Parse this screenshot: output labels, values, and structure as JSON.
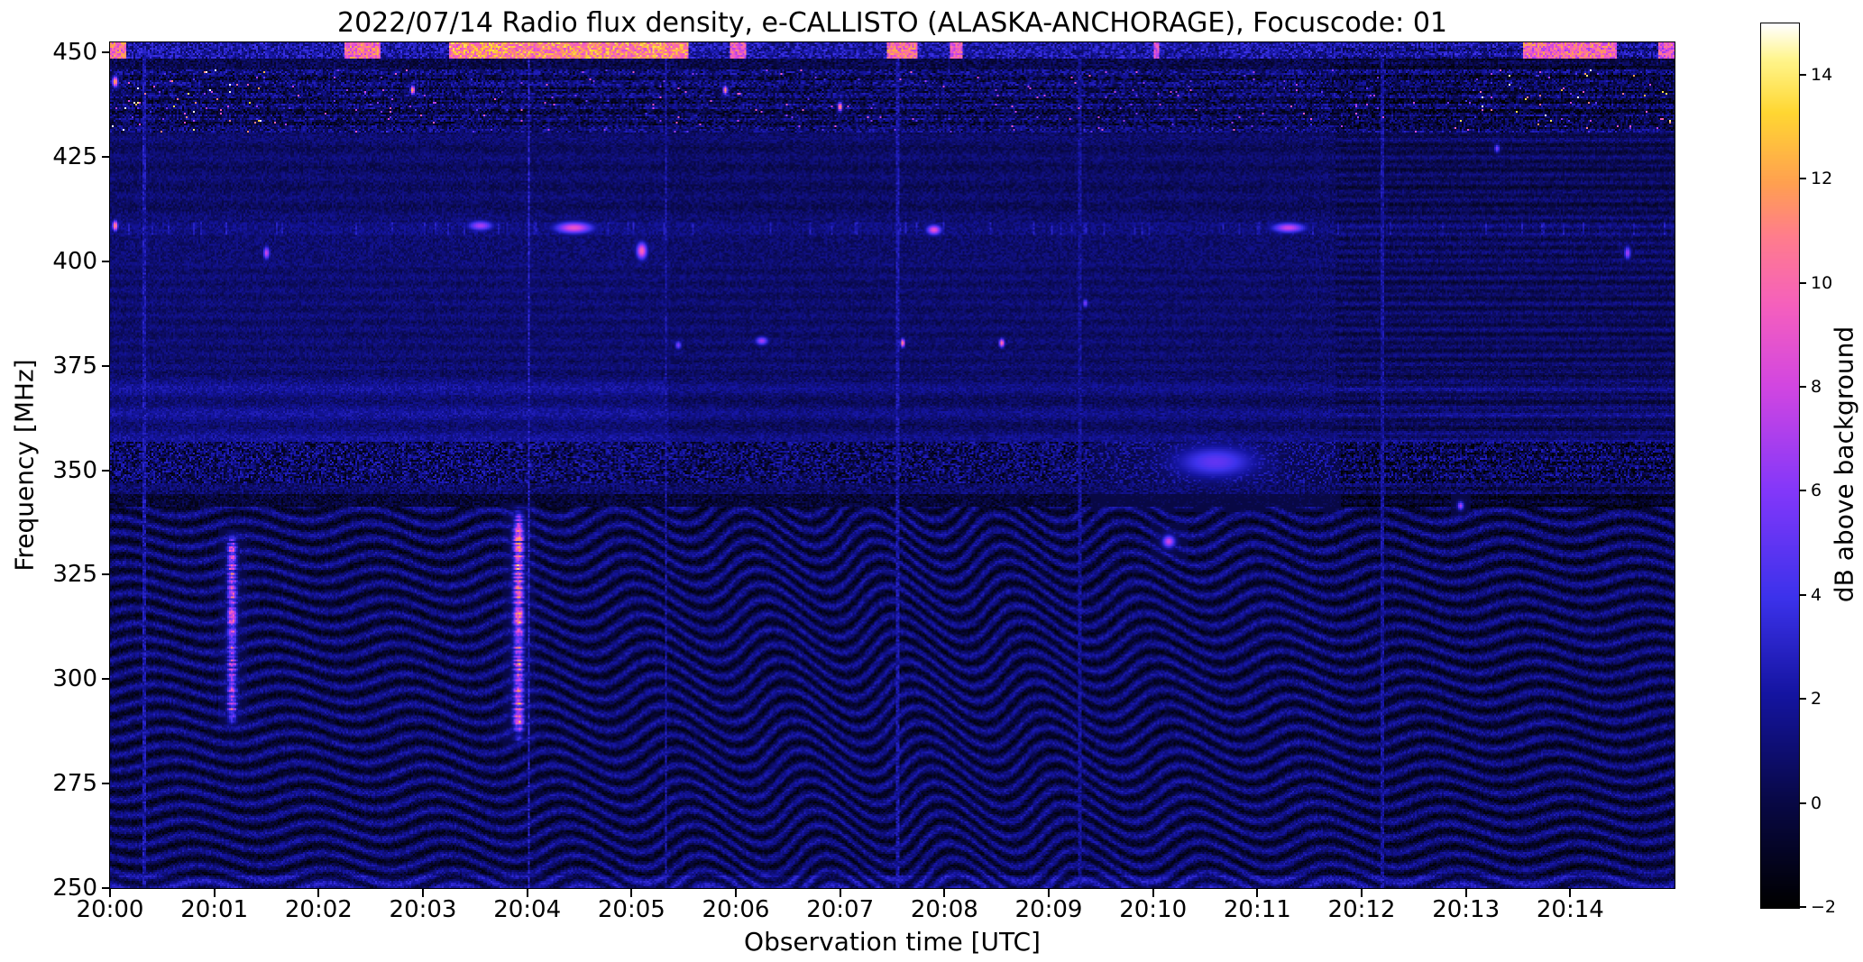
{
  "page": {
    "background": "#ffffff"
  },
  "chart_data": {
    "type": "heatmap",
    "title": "2022/07/14  Radio flux density, e-CALLISTO (ALASKA-ANCHORAGE), Focuscode: 01",
    "xlabel": "Observation time [UTC]",
    "ylabel": "Frequency [MHz]",
    "colorbar_label": "dB above background",
    "start_time_utc": "20:00",
    "x_tick_labels": [
      "20:00",
      "20:01",
      "20:02",
      "20:03",
      "20:04",
      "20:05",
      "20:06",
      "20:07",
      "20:08",
      "20:09",
      "20:10",
      "20:11",
      "20:12",
      "20:13",
      "20:14"
    ],
    "x_tick_minutes": [
      0,
      1,
      2,
      3,
      4,
      5,
      6,
      7,
      8,
      9,
      10,
      11,
      12,
      13,
      14
    ],
    "x_range_minutes": [
      0,
      15
    ],
    "y_tick_labels": [
      "250",
      "275",
      "300",
      "325",
      "350",
      "375",
      "400",
      "425",
      "450"
    ],
    "y_ticks_mhz": [
      250,
      275,
      300,
      325,
      350,
      375,
      400,
      425,
      450
    ],
    "y_range_mhz": [
      250,
      452.4
    ],
    "colorbar_tick_labels": [
      "−2",
      "0",
      "2",
      "4",
      "6",
      "8",
      "10",
      "12",
      "14"
    ],
    "colorbar_ticks": [
      -2,
      0,
      2,
      4,
      6,
      8,
      10,
      12,
      14
    ],
    "color_range_db": [
      -2,
      15
    ],
    "grid": false,
    "legend": false,
    "colormap_stops": [
      [
        0.0,
        0,
        0,
        0
      ],
      [
        0.12,
        8,
        8,
        70
      ],
      [
        0.24,
        20,
        20,
        160
      ],
      [
        0.35,
        60,
        50,
        235
      ],
      [
        0.47,
        130,
        55,
        250
      ],
      [
        0.59,
        210,
        70,
        225
      ],
      [
        0.68,
        245,
        95,
        190
      ],
      [
        0.76,
        255,
        125,
        140
      ],
      [
        0.82,
        255,
        160,
        80
      ],
      [
        0.9,
        255,
        215,
        50
      ],
      [
        0.96,
        255,
        245,
        140
      ],
      [
        1.0,
        255,
        255,
        255
      ]
    ],
    "features": {
      "background_db": 0.6,
      "wavy_band": {
        "f_max": 347,
        "stripe_period_mhz": 3.6,
        "description": "wavy blue interference stripes below 347 MHz, strongest waviness 20:05-20:10"
      },
      "granular_band": {
        "f_lo": 347,
        "f_hi": 357
      },
      "bright_blue_band": {
        "f_lo": 357,
        "f_hi": 372
      },
      "speckle_band": {
        "f_lo": 431,
        "f_hi": 446
      },
      "top_rfi_row": {
        "f_lo": 448.5,
        "f_hi": 452.4,
        "segments": [
          [
            0.0,
            0.15,
            10
          ],
          [
            2.25,
            2.6,
            10
          ],
          [
            3.25,
            5.55,
            11
          ],
          [
            5.95,
            6.1,
            9
          ],
          [
            7.45,
            7.75,
            10
          ],
          [
            8.05,
            8.18,
            9
          ],
          [
            10.0,
            10.06,
            8
          ],
          [
            13.55,
            14.45,
            10
          ],
          [
            14.85,
            15.0,
            9
          ]
        ]
      },
      "bursts": [
        {
          "t": 1.17,
          "f_lo": 293,
          "f_hi": 331,
          "peak_db": 13,
          "w": 0.045
        },
        {
          "t": 3.92,
          "f_lo": 289,
          "f_hi": 337,
          "peak_db": 15,
          "w": 0.05
        }
      ],
      "point_sources": [
        {
          "t": 0.05,
          "f": 443,
          "db": 13,
          "wt": 0.025,
          "wf": 1.2
        },
        {
          "t": 0.05,
          "f": 408.5,
          "db": 12,
          "wt": 0.025,
          "wf": 1.2
        },
        {
          "t": 1.5,
          "f": 402,
          "db": 8,
          "wt": 0.03,
          "wf": 1.5
        },
        {
          "t": 2.9,
          "f": 441,
          "db": 13,
          "wt": 0.02,
          "wf": 1.0
        },
        {
          "t": 3.55,
          "f": 408.5,
          "db": 7,
          "wt": 0.12,
          "wf": 1.2
        },
        {
          "t": 4.45,
          "f": 408,
          "db": 9,
          "wt": 0.18,
          "wf": 1.4
        },
        {
          "t": 5.1,
          "f": 402.5,
          "db": 10,
          "wt": 0.05,
          "wf": 2.0
        },
        {
          "t": 5.45,
          "f": 380,
          "db": 6,
          "wt": 0.03,
          "wf": 1.0
        },
        {
          "t": 5.9,
          "f": 441,
          "db": 12,
          "wt": 0.02,
          "wf": 1.0
        },
        {
          "t": 6.25,
          "f": 381,
          "db": 7,
          "wt": 0.06,
          "wf": 1.0
        },
        {
          "t": 7.0,
          "f": 437,
          "db": 13,
          "wt": 0.02,
          "wf": 1.0
        },
        {
          "t": 7.6,
          "f": 380.5,
          "db": 12,
          "wt": 0.02,
          "wf": 1.0
        },
        {
          "t": 7.9,
          "f": 407.5,
          "db": 9,
          "wt": 0.07,
          "wf": 1.2
        },
        {
          "t": 8.55,
          "f": 380.5,
          "db": 11,
          "wt": 0.025,
          "wf": 1.0
        },
        {
          "t": 9.35,
          "f": 390,
          "db": 6,
          "wt": 0.025,
          "wf": 1.0
        },
        {
          "t": 10.15,
          "f": 333,
          "db": 8,
          "wt": 0.06,
          "wf": 1.5
        },
        {
          "t": 10.6,
          "f": 352,
          "db": 5,
          "wt": 0.4,
          "wf": 4.0
        },
        {
          "t": 11.3,
          "f": 408,
          "db": 8,
          "wt": 0.16,
          "wf": 1.2
        },
        {
          "t": 12.95,
          "f": 341.5,
          "db": 7,
          "wt": 0.03,
          "wf": 1.0
        },
        {
          "t": 13.3,
          "f": 427,
          "db": 6,
          "wt": 0.025,
          "wf": 1.0
        },
        {
          "t": 14.55,
          "f": 402,
          "db": 7,
          "wt": 0.03,
          "wf": 1.5
        }
      ],
      "faint_vertical_lines": [
        {
          "t": 0.33,
          "db": 2.8
        },
        {
          "t": 4.02,
          "db": 3.4
        },
        {
          "t": 5.33,
          "db": 2.6
        },
        {
          "t": 7.55,
          "db": 2.7
        },
        {
          "t": 9.3,
          "db": 2.3
        },
        {
          "t": 12.2,
          "db": 2.4
        }
      ],
      "section_boundaries_min": [
        5.35,
        11.75
      ],
      "right_section_darker_after_min": 11.75
    }
  }
}
